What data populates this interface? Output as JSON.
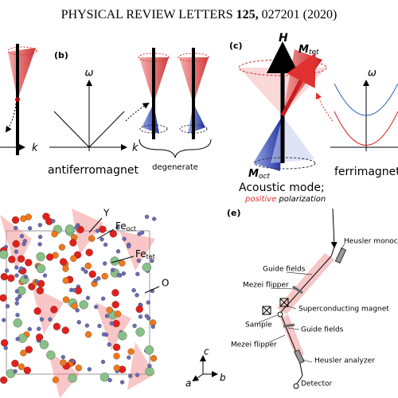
{
  "header": {
    "journal": "PHYSICAL REVIEW LETTERS",
    "volume": "125,",
    "pages": "027201 (2020)"
  },
  "panel_b": {
    "label": "(b)",
    "y_axis": "ω",
    "x_axis": "k",
    "caption": "antiferromagnet",
    "brace_label": "degenerate"
  },
  "panel_a": {
    "x_axis": "k"
  },
  "panel_c": {
    "label": "(c)",
    "field": "H",
    "m_tet": {
      "symbol": "M",
      "subscript": "tet"
    },
    "m_oct": {
      "symbol": "M",
      "subscript": "oct"
    },
    "mode": "Acoustic mode;",
    "polarization": {
      "word": "positive",
      "rest": "polarization"
    },
    "y_axis": "ω",
    "caption": "ferrimagnet"
  },
  "panel_d": {
    "atoms": [
      {
        "symbol": "Y"
      },
      {
        "symbol": "Fe",
        "subscript": "oct"
      },
      {
        "symbol": "Fe",
        "subscript": "tet"
      },
      {
        "symbol": "O"
      }
    ],
    "axes": [
      "a",
      "b",
      "c"
    ]
  },
  "panel_e": {
    "label": "(e)",
    "components": [
      "Heusler monochr",
      "Guide fields",
      "Mezei flipper",
      "Superconducting magnet",
      "Sample",
      "Guide fields",
      "Mezei flipper",
      "Heusler analyzer",
      "Detector"
    ]
  }
}
